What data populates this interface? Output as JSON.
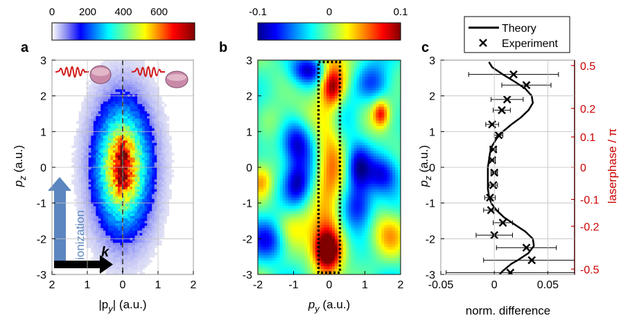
{
  "colors": {
    "axis": "#000000",
    "phase_axis": "#cc0000",
    "theory_line": "#000000",
    "dash_line": "#000000",
    "arrow_ionization": "#5b86c0",
    "arrow_k": "#000000"
  },
  "chart_data": [
    {
      "id": "a",
      "type": "heatmap",
      "panel_label": "a",
      "xlabel": "|p",
      "xlabel_sub": "y",
      "xlabel_tail": "| (a.u.)",
      "ylabel": "p",
      "ylabel_sub": "z",
      "ylabel_tail": " (a.u.)",
      "xlim": [
        2,
        -2
      ],
      "ylim": [
        -3,
        3
      ],
      "xticks": [
        "2",
        "1",
        "0",
        "1",
        "2"
      ],
      "xtick_values": [
        -2,
        -1,
        0,
        1,
        2
      ],
      "yticks": [
        "-3",
        "-2",
        "-1",
        "0",
        "1",
        "2",
        "3"
      ],
      "ytick_values": [
        -3,
        -2,
        -1,
        0,
        1,
        2,
        3
      ],
      "colorbar": {
        "range": [
          0,
          800
        ],
        "ticks": [
          "0",
          "200",
          "400",
          "600"
        ],
        "tick_values": [
          0,
          200,
          400,
          600
        ],
        "colormap": "jet"
      },
      "distribution": {
        "center": [
          0,
          0
        ],
        "sigma_py": 0.42,
        "sigma_pz": 0.95,
        "peaks_pz": [
          0.45,
          -0.3
        ],
        "max_counts": 780
      },
      "dashed_line_x": 0,
      "annotations": {
        "ionization_label": "ionization",
        "k_label": "k"
      }
    },
    {
      "id": "b",
      "type": "heatmap",
      "panel_label": "b",
      "xlabel": "p",
      "xlabel_sub": "y",
      "xlabel_tail": " (a.u.)",
      "xlim": [
        -2,
        2
      ],
      "ylim": [
        -3,
        3
      ],
      "xticks": [
        "-2",
        "-1",
        "0",
        "1",
        "2"
      ],
      "xtick_values": [
        -2,
        -1,
        0,
        1,
        2
      ],
      "yticks": [
        "-3",
        "-2",
        "-1",
        "0",
        "1",
        "2",
        "3"
      ],
      "ytick_values": [
        -3,
        -2,
        -1,
        0,
        1,
        2,
        3
      ],
      "colorbar": {
        "range": [
          -0.1,
          0.1
        ],
        "ticks": [
          "-0.1",
          "0",
          "0.1"
        ],
        "tick_values": [
          -0.1,
          0,
          0.1
        ],
        "colormap": "jet"
      },
      "dotted_box": {
        "py": [
          -0.3,
          0.3
        ],
        "pz": [
          -2.95,
          2.95
        ]
      },
      "features": [
        {
          "py": 0.0,
          "pz": 0.0,
          "w": 0.28,
          "h": 3.0,
          "value": 0.05
        },
        {
          "py": 0.1,
          "pz": 2.25,
          "w": 0.2,
          "h": 0.35,
          "value": 0.07
        },
        {
          "py": -0.05,
          "pz": -2.35,
          "w": 0.22,
          "h": 0.3,
          "value": 0.09
        },
        {
          "py": -0.15,
          "pz": -2.1,
          "w": 0.35,
          "h": 0.5,
          "value": 0.06
        },
        {
          "py": 1.45,
          "pz": 1.5,
          "w": 0.15,
          "h": 0.25,
          "value": 0.07
        },
        {
          "py": 0.8,
          "pz": 0.0,
          "w": 0.25,
          "h": 0.45,
          "value": -0.08
        },
        {
          "py": -0.9,
          "pz": 0.7,
          "w": 0.3,
          "h": 0.45,
          "value": -0.075
        },
        {
          "py": -0.9,
          "pz": -0.5,
          "w": 0.25,
          "h": 0.4,
          "value": -0.06
        },
        {
          "py": -0.55,
          "pz": 2.7,
          "w": 0.35,
          "h": 0.25,
          "value": -0.06
        },
        {
          "py": 0.85,
          "pz": -1.1,
          "w": 0.3,
          "h": 0.45,
          "value": -0.06
        },
        {
          "py": 1.5,
          "pz": -0.2,
          "w": 0.3,
          "h": 0.35,
          "value": -0.05
        },
        {
          "py": -1.6,
          "pz": -2.0,
          "w": 0.35,
          "h": 0.4,
          "value": -0.06
        },
        {
          "py": 1.7,
          "pz": -1.9,
          "w": 0.35,
          "h": 0.4,
          "value": 0.035
        },
        {
          "py": -1.9,
          "pz": -0.4,
          "w": 0.2,
          "h": 0.3,
          "value": 0.04
        },
        {
          "py": -1.2,
          "pz": -1.7,
          "w": 0.35,
          "h": 0.35,
          "value": 0.03
        },
        {
          "py": 1.2,
          "pz": 2.3,
          "w": 0.35,
          "h": 0.35,
          "value": -0.04
        },
        {
          "py": -1.6,
          "pz": 1.3,
          "w": 0.3,
          "h": 0.4,
          "value": 0.02
        }
      ]
    },
    {
      "id": "c",
      "type": "scatter",
      "panel_label": "c",
      "xlabel": "norm. difference",
      "ylabel": "p",
      "ylabel_sub": "z",
      "ylabel_tail": " (a.u.)",
      "y2label": "laserphase / π",
      "xlim": [
        -0.05,
        0.075
      ],
      "ylim": [
        -3,
        3
      ],
      "xticks": [
        "-0.05",
        "0",
        "0.05"
      ],
      "xtick_values": [
        -0.05,
        0,
        0.05
      ],
      "yticks": [
        "-3",
        "-2",
        "-1",
        "0",
        "1",
        "2",
        "3"
      ],
      "ytick_values": [
        -3,
        -2,
        -1,
        0,
        1,
        2,
        3
      ],
      "y2ticks": [
        {
          "label": "0.5",
          "pz": 2.85
        },
        {
          "label": "0.2",
          "pz": 1.65
        },
        {
          "label": "0.1",
          "pz": 0.85
        },
        {
          "label": "0",
          "pz": 0.0
        },
        {
          "label": "-0.1",
          "pz": -0.9
        },
        {
          "label": "-0.2",
          "pz": -1.65
        },
        {
          "label": "-0.5",
          "pz": -2.85
        }
      ],
      "legend": {
        "theory": "Theory",
        "experiment": "Experiment",
        "placement": "top-right"
      },
      "theory": {
        "pz": [
          -3.0,
          -2.9,
          -2.8,
          -2.7,
          -2.6,
          -2.4,
          -2.2,
          -2.0,
          -1.8,
          -1.6,
          -1.4,
          -1.2,
          -1.0,
          -0.8,
          -0.6,
          -0.4,
          -0.2,
          0.0,
          0.2,
          0.4,
          0.6,
          0.8,
          1.0,
          1.2,
          1.4,
          1.6,
          1.8,
          2.0,
          2.2,
          2.4,
          2.6,
          2.8,
          2.9,
          2.95
        ],
        "diff": [
          0.005,
          0.008,
          0.012,
          0.016,
          0.022,
          0.032,
          0.037,
          0.036,
          0.029,
          0.019,
          0.009,
          0.002,
          -0.003,
          -0.005,
          -0.006,
          -0.006,
          -0.006,
          -0.006,
          -0.005,
          -0.004,
          -0.002,
          0.002,
          0.008,
          0.016,
          0.025,
          0.032,
          0.036,
          0.035,
          0.029,
          0.019,
          0.008,
          -0.002,
          -0.004,
          -0.005
        ]
      },
      "experiment": {
        "pz": [
          2.6,
          2.3,
          1.9,
          1.6,
          1.2,
          0.9,
          0.5,
          0.2,
          -0.15,
          -0.5,
          -0.85,
          -1.2,
          -1.55,
          -1.9,
          -2.25,
          -2.6,
          -2.95
        ],
        "diff": [
          0.018,
          0.03,
          0.012,
          0.007,
          -0.002,
          0.004,
          -0.001,
          -0.002,
          0.0,
          -0.001,
          -0.004,
          -0.003,
          0.008,
          0.0,
          0.03,
          0.035,
          0.015
        ],
        "err": [
          0.042,
          0.023,
          0.015,
          0.008,
          0.006,
          0.004,
          0.003,
          0.003,
          0.003,
          0.004,
          0.005,
          0.007,
          0.009,
          0.017,
          0.028,
          0.045,
          0.06
        ]
      }
    }
  ]
}
